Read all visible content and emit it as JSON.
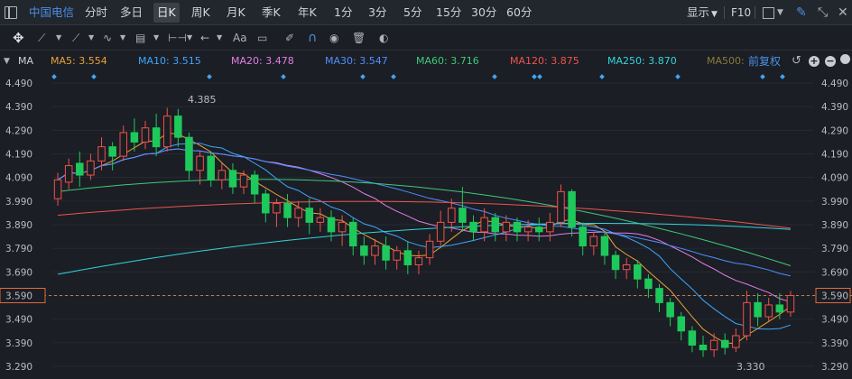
{
  "top_bar": {
    "stock_name": "中国电信",
    "periods": [
      "分时",
      "多日",
      "日K",
      "周K",
      "月K",
      "季K",
      "年K",
      "1分",
      "3分",
      "5分",
      "15分",
      "30分",
      "60分"
    ],
    "active_period": "日K",
    "display_label": "显示",
    "f10_label": "F10"
  },
  "tool_bar": {
    "text_tool_label": "Aa"
  },
  "ma_bar": {
    "label": "MA",
    "items": [
      {
        "text": "MA5: 3.554",
        "color": "#e8a33a"
      },
      {
        "text": "MA10: 3.515",
        "color": "#3ea6ff"
      },
      {
        "text": "MA20: 3.478",
        "color": "#e27ee6"
      },
      {
        "text": "MA30: 3.547",
        "color": "#4f8fff"
      },
      {
        "text": "MA60: 3.716",
        "color": "#3fc97a"
      },
      {
        "text": "MA120: 3.875",
        "color": "#ef5350"
      },
      {
        "text": "MA250: 3.870",
        "color": "#33d4dc"
      },
      {
        "text": "MA500:",
        "color": "#8a7a3a"
      }
    ],
    "adjust_label": "前复权"
  },
  "chart_data": {
    "type": "candlestick",
    "y_ticks": [
      "4.490",
      "4.390",
      "4.290",
      "4.190",
      "4.090",
      "3.990",
      "3.890",
      "3.790",
      "3.690",
      "3.590",
      "3.490",
      "3.390",
      "3.290"
    ],
    "ylim": [
      3.29,
      4.49
    ],
    "current_price": "3.590",
    "annotations": {
      "high": "4.385",
      "low": "3.330"
    },
    "candles": [
      [
        4.0,
        4.08,
        3.97,
        4.11
      ],
      [
        4.07,
        4.14,
        4.04,
        4.17
      ],
      [
        4.15,
        4.1,
        4.05,
        4.2
      ],
      [
        4.1,
        4.16,
        4.08,
        4.19
      ],
      [
        4.16,
        4.22,
        4.12,
        4.26
      ],
      [
        4.22,
        4.18,
        4.12,
        4.24
      ],
      [
        4.18,
        4.28,
        4.16,
        4.31
      ],
      [
        4.28,
        4.24,
        4.2,
        4.34
      ],
      [
        4.24,
        4.3,
        4.21,
        4.33
      ],
      [
        4.3,
        4.22,
        4.18,
        4.36
      ],
      [
        4.22,
        4.35,
        4.2,
        4.385
      ],
      [
        4.35,
        4.26,
        4.22,
        4.38
      ],
      [
        4.26,
        4.12,
        4.08,
        4.28
      ],
      [
        4.12,
        4.18,
        4.06,
        4.2
      ],
      [
        4.18,
        4.08,
        4.05,
        4.2
      ],
      [
        4.08,
        4.12,
        4.04,
        4.15
      ],
      [
        4.12,
        4.05,
        4.02,
        4.15
      ],
      [
        4.05,
        4.1,
        4.02,
        4.12
      ],
      [
        4.1,
        4.02,
        3.98,
        4.12
      ],
      [
        4.02,
        3.94,
        3.9,
        4.04
      ],
      [
        3.94,
        3.98,
        3.88,
        4.0
      ],
      [
        3.98,
        3.92,
        3.88,
        4.02
      ],
      [
        3.92,
        3.96,
        3.88,
        3.99
      ],
      [
        3.96,
        3.9,
        3.85,
        4.0
      ],
      [
        3.9,
        3.92,
        3.86,
        3.96
      ],
      [
        3.92,
        3.86,
        3.82,
        3.95
      ],
      [
        3.86,
        3.9,
        3.8,
        3.93
      ],
      [
        3.9,
        3.8,
        3.76,
        3.92
      ],
      [
        3.8,
        3.76,
        3.72,
        3.84
      ],
      [
        3.76,
        3.8,
        3.72,
        3.83
      ],
      [
        3.8,
        3.74,
        3.7,
        3.84
      ],
      [
        3.74,
        3.78,
        3.7,
        3.8
      ],
      [
        3.78,
        3.72,
        3.68,
        3.82
      ],
      [
        3.72,
        3.75,
        3.68,
        3.78
      ],
      [
        3.75,
        3.82,
        3.72,
        3.85
      ],
      [
        3.82,
        3.9,
        3.8,
        3.95
      ],
      [
        3.9,
        3.96,
        3.86,
        4.0
      ],
      [
        3.96,
        3.9,
        3.86,
        4.05
      ],
      [
        3.9,
        3.86,
        3.82,
        3.93
      ],
      [
        3.86,
        3.92,
        3.82,
        3.96
      ],
      [
        3.92,
        3.86,
        3.82,
        3.94
      ],
      [
        3.86,
        3.9,
        3.82,
        3.93
      ],
      [
        3.9,
        3.86,
        3.82,
        3.92
      ],
      [
        3.86,
        3.88,
        3.82,
        3.91
      ],
      [
        3.88,
        3.86,
        3.82,
        3.92
      ],
      [
        3.86,
        3.9,
        3.82,
        3.94
      ],
      [
        3.9,
        4.03,
        3.88,
        4.06
      ],
      [
        4.03,
        3.88,
        3.84,
        4.04
      ],
      [
        3.88,
        3.8,
        3.76,
        3.9
      ],
      [
        3.8,
        3.84,
        3.76,
        3.86
      ],
      [
        3.84,
        3.76,
        3.72,
        3.86
      ],
      [
        3.76,
        3.7,
        3.66,
        3.78
      ],
      [
        3.7,
        3.72,
        3.66,
        3.75
      ],
      [
        3.72,
        3.66,
        3.62,
        3.74
      ],
      [
        3.66,
        3.62,
        3.58,
        3.68
      ],
      [
        3.62,
        3.56,
        3.52,
        3.64
      ],
      [
        3.56,
        3.5,
        3.46,
        3.58
      ],
      [
        3.5,
        3.44,
        3.4,
        3.52
      ],
      [
        3.44,
        3.38,
        3.35,
        3.46
      ],
      [
        3.38,
        3.36,
        3.33,
        3.42
      ],
      [
        3.36,
        3.4,
        3.33,
        3.43
      ],
      [
        3.4,
        3.37,
        3.34,
        3.43
      ],
      [
        3.37,
        3.42,
        3.35,
        3.45
      ],
      [
        3.42,
        3.56,
        3.4,
        3.61
      ],
      [
        3.56,
        3.5,
        3.46,
        3.6
      ],
      [
        3.5,
        3.55,
        3.48,
        3.58
      ],
      [
        3.55,
        3.52,
        3.49,
        3.6
      ],
      [
        3.52,
        3.59,
        3.5,
        3.61
      ]
    ]
  }
}
